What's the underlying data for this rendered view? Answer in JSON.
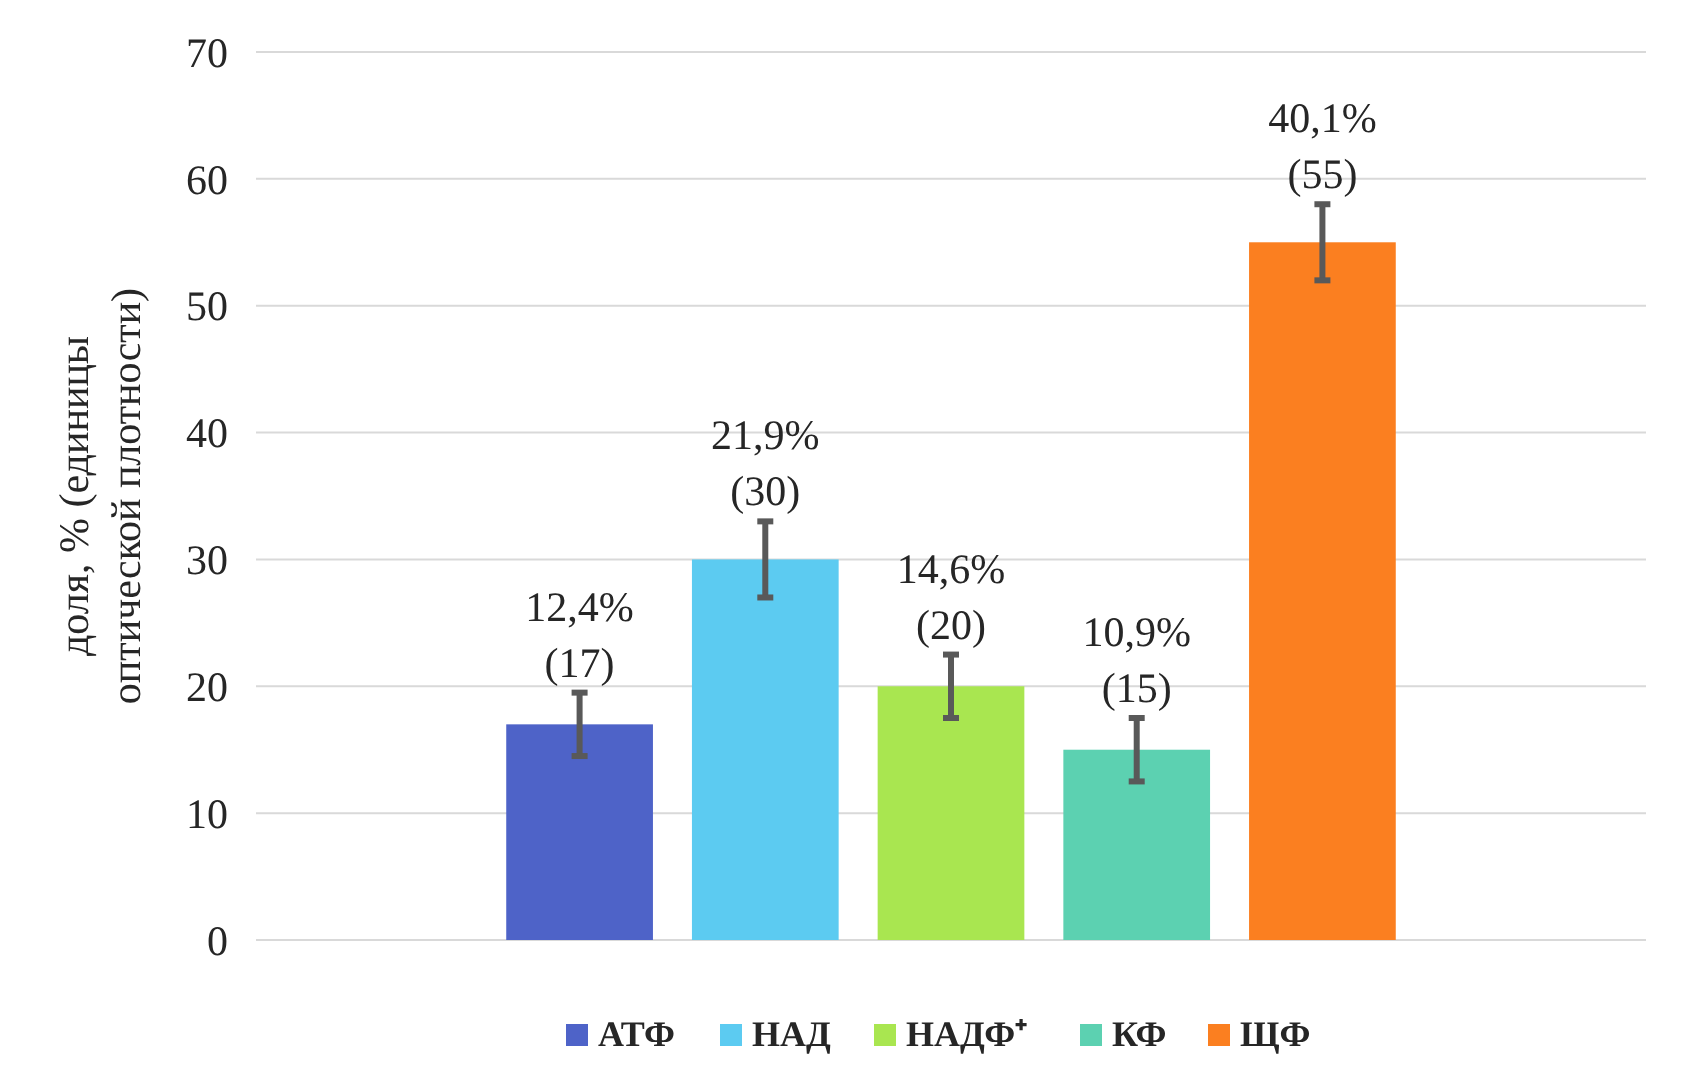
{
  "chart_data": {
    "type": "bar",
    "ylabel": "доля, % (единицы оптической плотности)",
    "categories": [
      null
    ],
    "ylim": [
      0,
      70
    ],
    "yticks": [
      0,
      10,
      20,
      30,
      40,
      50,
      60,
      70
    ],
    "grid": "y",
    "legend": "bottom",
    "series": [
      {
        "name": "АТФ",
        "color": "#4e63c8",
        "values": [
          17
        ],
        "errors": [
          2.5
        ],
        "value_labels": [
          "12,4%\n(17)"
        ]
      },
      {
        "name": "НАД",
        "color": "#5ccbf1",
        "values": [
          30
        ],
        "errors": [
          3
        ],
        "value_labels": [
          "21,9%\n(30)"
        ]
      },
      {
        "name": "НАДФ⁺",
        "color": "#a9e650",
        "values": [
          20
        ],
        "errors": [
          2.5
        ],
        "value_labels": [
          "14,6%\n(20)"
        ]
      },
      {
        "name": "КФ",
        "color": "#5cd1b1",
        "values": [
          15
        ],
        "errors": [
          2.5
        ],
        "value_labels": [
          "10,9%\n(15)"
        ]
      },
      {
        "name": "ЩФ",
        "color": "#fb7f20",
        "values": [
          55
        ],
        "errors": [
          3
        ],
        "value_labels": [
          "40,1%\n(55)"
        ]
      }
    ]
  }
}
